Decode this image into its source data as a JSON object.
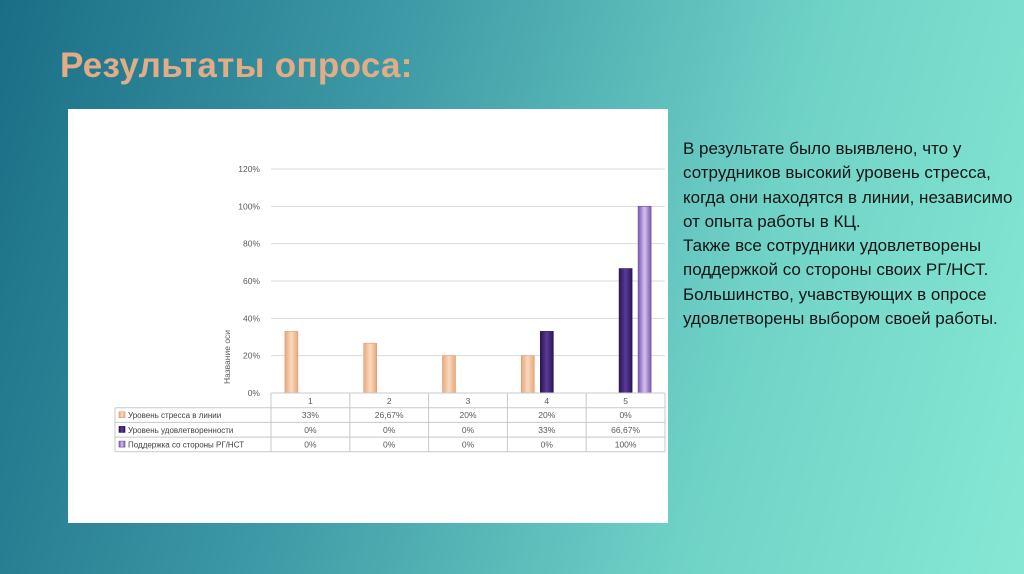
{
  "slide": {
    "title": "Результаты опроса:",
    "paragraphs": [
      "В результате было выявлено, что у сотрудников высокий уровень стресса, когда они находятся в линии, независимо от опыта работы в  КЦ.",
      "Также все сотрудники удовлетворены поддержкой со стороны своих РГ/НСТ.",
      "Большинство, учавствующих в опросе удовлетворены выбором своей работы."
    ]
  },
  "chart_data": {
    "type": "bar",
    "title": "",
    "xlabel": "",
    "ylabel": "Название оси",
    "categories": [
      "1",
      "2",
      "3",
      "4",
      "5"
    ],
    "yticks": [
      "0%",
      "20%",
      "40%",
      "60%",
      "80%",
      "100%",
      "120%"
    ],
    "ylim": [
      0,
      120
    ],
    "grid": true,
    "legend": "table-below",
    "series": [
      {
        "name": "Уровень стресса в линии",
        "values": [
          33,
          26.67,
          20,
          20,
          0
        ],
        "labels": [
          "33%",
          "26,67%",
          "20%",
          "20%",
          "0%"
        ],
        "color": "#f3c8a3"
      },
      {
        "name": "Уровень удовлетворенности",
        "values": [
          0,
          0,
          0,
          33,
          66.67
        ],
        "labels": [
          "0%",
          "0%",
          "0%",
          "33%",
          "66,67%"
        ],
        "color": "#3c2472"
      },
      {
        "name": "Поддержка со стороны РГ/НСТ",
        "values": [
          0,
          0,
          0,
          0,
          100
        ],
        "labels": [
          "0%",
          "0%",
          "0%",
          "0%",
          "100%"
        ],
        "color": "#8b6cc2"
      }
    ]
  }
}
